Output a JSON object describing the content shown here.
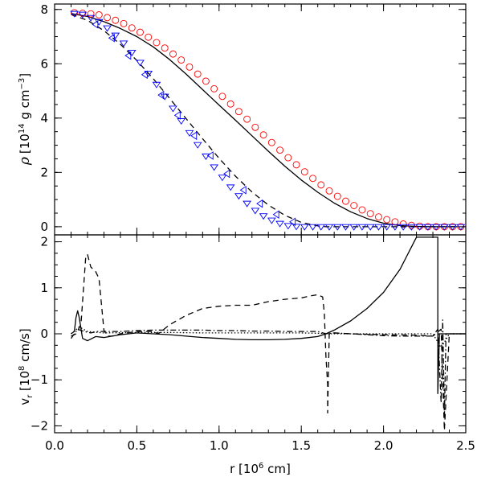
{
  "chart_data": [
    {
      "type": "line",
      "panel": "top",
      "ylabel": "ρ [10¹⁴ g cm⁻³]",
      "ylabel_parts": {
        "sym": "ρ",
        "pre": "[10",
        "exp1": "14",
        "mid": " g cm",
        "exp2": "−3",
        "post": "]"
      },
      "xlim": [
        0.0,
        2.5
      ],
      "ylim": [
        -0.3,
        8.2
      ],
      "yticks": [
        0,
        2,
        4,
        6,
        8
      ],
      "ytick_labels": [
        "0",
        "2",
        "4",
        "6",
        "8"
      ],
      "series": [
        {
          "style": "solid",
          "color": "#000000",
          "x": [
            0.1,
            0.2,
            0.3,
            0.4,
            0.5,
            0.6,
            0.7,
            0.8,
            0.9,
            1.0,
            1.1,
            1.2,
            1.3,
            1.4,
            1.5,
            1.6,
            1.7,
            1.8,
            1.9,
            2.0,
            2.1,
            2.2,
            2.3,
            2.4,
            2.45
          ],
          "y": [
            7.85,
            7.74,
            7.55,
            7.3,
            7.0,
            6.62,
            6.15,
            5.62,
            5.05,
            4.48,
            3.92,
            3.35,
            2.78,
            2.23,
            1.72,
            1.27,
            0.87,
            0.55,
            0.3,
            0.13,
            0.04,
            0.01,
            0.0,
            0.0,
            0.0
          ]
        },
        {
          "style": "markers",
          "marker": "circle",
          "color": "#ff0000",
          "x": [
            0.12,
            0.17,
            0.22,
            0.27,
            0.32,
            0.37,
            0.42,
            0.47,
            0.52,
            0.57,
            0.62,
            0.67,
            0.72,
            0.77,
            0.82,
            0.87,
            0.92,
            0.97,
            1.02,
            1.07,
            1.12,
            1.17,
            1.22,
            1.27,
            1.32,
            1.37,
            1.42,
            1.47,
            1.52,
            1.57,
            1.62,
            1.67,
            1.72,
            1.77,
            1.82,
            1.87,
            1.92,
            1.97,
            2.02,
            2.07,
            2.12,
            2.17,
            2.22,
            2.27,
            2.32,
            2.37,
            2.42,
            2.47
          ],
          "y": [
            7.88,
            7.86,
            7.84,
            7.8,
            7.7,
            7.6,
            7.48,
            7.32,
            7.16,
            6.98,
            6.78,
            6.58,
            6.36,
            6.14,
            5.88,
            5.62,
            5.36,
            5.08,
            4.8,
            4.52,
            4.24,
            3.96,
            3.66,
            3.38,
            3.1,
            2.82,
            2.54,
            2.28,
            2.02,
            1.78,
            1.54,
            1.32,
            1.12,
            0.94,
            0.78,
            0.62,
            0.48,
            0.36,
            0.26,
            0.18,
            0.1,
            0.05,
            0.02,
            0.0,
            0.0,
            0.0,
            0.0,
            0.0
          ]
        },
        {
          "style": "dashed",
          "color": "#000000",
          "x": [
            0.1,
            0.2,
            0.3,
            0.4,
            0.5,
            0.6,
            0.7,
            0.8,
            0.9,
            1.0,
            1.1,
            1.2,
            1.3,
            1.4,
            1.5,
            1.6,
            1.65,
            1.7,
            1.8,
            2.0,
            2.2,
            2.45
          ],
          "y": [
            7.82,
            7.6,
            7.22,
            6.72,
            6.12,
            5.45,
            4.72,
            3.98,
            3.24,
            2.52,
            1.86,
            1.28,
            0.8,
            0.42,
            0.16,
            0.03,
            0.0,
            0.0,
            0.0,
            0.0,
            0.0,
            0.0
          ]
        },
        {
          "style": "markers",
          "marker": "triangle-down",
          "color": "#0000ff",
          "x": [
            0.12,
            0.17,
            0.22,
            0.27,
            0.32,
            0.37,
            0.42,
            0.47,
            0.52,
            0.57,
            0.62,
            0.67,
            0.72,
            0.77,
            0.82,
            0.87,
            0.92,
            0.97,
            1.02,
            1.07,
            1.12,
            1.17,
            1.22,
            1.27,
            1.32,
            1.37,
            1.42,
            1.47,
            1.52,
            1.57,
            1.62,
            1.67,
            1.72,
            1.77,
            1.82,
            1.87,
            1.92,
            1.97,
            2.02,
            2.07,
            2.12,
            2.17,
            2.22,
            2.27,
            2.32,
            2.37,
            2.42,
            2.47
          ],
          "y": [
            7.85,
            7.82,
            7.7,
            7.55,
            7.32,
            7.05,
            6.76,
            6.42,
            6.05,
            5.65,
            5.24,
            4.8,
            4.36,
            3.9,
            3.46,
            3.02,
            2.6,
            2.2,
            1.82,
            1.46,
            1.14,
            0.86,
            0.6,
            0.4,
            0.24,
            0.12,
            0.04,
            0.01,
            0.0,
            0.0,
            0.0,
            0.0,
            0.0,
            0.0,
            0.0,
            0.0,
            0.0,
            0.0,
            0.0,
            0.0,
            0.0,
            0.0,
            0.0,
            0.0,
            0.0,
            0.0,
            0.0,
            0.0
          ]
        },
        {
          "style": "markers",
          "marker": "triangle-left",
          "color": "#0000ff",
          "x": [
            0.25,
            0.35,
            0.45,
            0.55,
            0.65,
            0.75,
            0.85,
            0.95,
            1.05,
            1.15,
            1.25,
            1.35,
            1.45
          ],
          "y": [
            7.45,
            6.95,
            6.3,
            5.6,
            4.85,
            4.1,
            3.35,
            2.62,
            1.95,
            1.35,
            0.85,
            0.45,
            0.18
          ]
        }
      ]
    },
    {
      "type": "line",
      "panel": "bottom",
      "xlabel": "r [10⁶ cm]",
      "xlabel_parts": {
        "pre": "r [10",
        "exp": "6",
        "post": " cm]"
      },
      "ylabel": "vᵣ [10⁸ cm/s]",
      "ylabel_parts": {
        "sym": "v",
        "sub": "r",
        "pre": " [10",
        "exp": "8",
        "post": " cm/s]"
      },
      "xlim": [
        0.0,
        2.5
      ],
      "ylim": [
        -2.15,
        2.15
      ],
      "xticks": [
        0.0,
        0.5,
        1.0,
        1.5,
        2.0,
        2.5
      ],
      "xtick_labels": [
        "0.0",
        "0.5",
        "1.0",
        "1.5",
        "2.0",
        "2.5"
      ],
      "yticks": [
        -2,
        -1,
        0,
        1,
        2
      ],
      "ytick_labels": [
        "−2",
        "−1",
        "0",
        "1",
        "2"
      ],
      "series": [
        {
          "style": "solid",
          "color": "#000000",
          "x": [
            0.1,
            0.12,
            0.13,
            0.14,
            0.15,
            0.17,
            0.2,
            0.25,
            0.3,
            0.4,
            0.5,
            0.6,
            0.7,
            0.8,
            0.9,
            1.0,
            1.1,
            1.2,
            1.3,
            1.4,
            1.5,
            1.6,
            1.65,
            1.7,
            1.8,
            1.9,
            2.0,
            2.1,
            2.2,
            2.33,
            2.33,
            2.34,
            2.36,
            2.4,
            2.5
          ],
          "y": [
            0.0,
            0.05,
            0.35,
            0.5,
            0.35,
            -0.1,
            -0.15,
            -0.06,
            -0.08,
            -0.02,
            0.02,
            0.0,
            -0.02,
            -0.05,
            -0.08,
            -0.1,
            -0.12,
            -0.13,
            -0.13,
            -0.12,
            -0.1,
            -0.06,
            0.0,
            0.08,
            0.28,
            0.55,
            0.9,
            1.4,
            2.1,
            2.1,
            -1.3,
            0.0,
            0.0,
            0.0,
            0.0
          ]
        },
        {
          "style": "dashed",
          "color": "#000000",
          "x": [
            0.1,
            0.13,
            0.16,
            0.19,
            0.2,
            0.22,
            0.25,
            0.27,
            0.3,
            0.32,
            0.35,
            0.4,
            0.5,
            0.6,
            0.63,
            0.7,
            0.8,
            0.9,
            1.0,
            1.1,
            1.2,
            1.3,
            1.4,
            1.5,
            1.55,
            1.6,
            1.63,
            1.64,
            1.65,
            1.66,
            1.66,
            1.67,
            1.7,
            1.8,
            2.0,
            2.2,
            2.3,
            2.35,
            2.36,
            2.37,
            2.4,
            2.5
          ],
          "y": [
            -0.05,
            0.0,
            0.2,
            1.7,
            1.72,
            1.45,
            1.35,
            1.2,
            0.08,
            -0.05,
            -0.05,
            0.0,
            0.05,
            0.05,
            0.0,
            0.2,
            0.4,
            0.55,
            0.6,
            0.62,
            0.62,
            0.7,
            0.75,
            0.78,
            0.82,
            0.85,
            0.8,
            0.45,
            -0.5,
            -1.1,
            -1.72,
            0.0,
            0.02,
            0.0,
            -0.02,
            -0.03,
            -0.05,
            0.1,
            -1.0,
            -2.1,
            0.0,
            0.0
          ]
        },
        {
          "style": "dashdot",
          "color": "#000000",
          "x": [
            0.1,
            0.14,
            0.18,
            0.22,
            0.26,
            0.3,
            0.4,
            0.5,
            0.6,
            0.7,
            0.8,
            0.9,
            1.0,
            1.1,
            1.2,
            1.3,
            1.4,
            1.5,
            1.6,
            1.65,
            1.7,
            1.8,
            1.9,
            2.0,
            2.1,
            2.2,
            2.3,
            2.33,
            2.35,
            2.36,
            2.37,
            2.38,
            2.4,
            2.5
          ],
          "y": [
            -0.1,
            0.1,
            0.05,
            0.02,
            0.05,
            0.05,
            0.05,
            0.07,
            0.08,
            0.08,
            0.08,
            0.08,
            0.07,
            0.07,
            0.06,
            0.06,
            0.05,
            0.05,
            0.05,
            0.0,
            0.02,
            0.0,
            -0.02,
            -0.04,
            -0.05,
            -0.05,
            -0.05,
            0.1,
            -1.5,
            0.3,
            -1.8,
            0.0,
            0.0,
            0.0
          ]
        },
        {
          "style": "dotted",
          "color": "#000000",
          "x": [
            0.1,
            0.15,
            0.2,
            0.3,
            0.5,
            0.7,
            0.9,
            1.1,
            1.3,
            1.5,
            1.6,
            1.7,
            1.9,
            2.1,
            2.3,
            2.35,
            2.4,
            2.5
          ],
          "y": [
            0.0,
            0.15,
            0.05,
            0.02,
            0.03,
            0.03,
            0.02,
            0.02,
            0.02,
            0.02,
            0.01,
            0.0,
            0.0,
            0.0,
            0.0,
            -0.3,
            0.0,
            0.0
          ]
        }
      ]
    }
  ]
}
